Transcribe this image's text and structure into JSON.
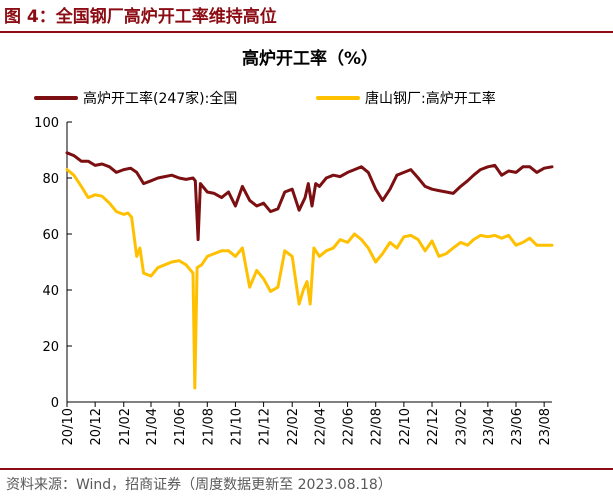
{
  "figure": {
    "title": "图 4：全国钢厂高炉开工率维持高位",
    "source": "资料来源：Wind，招商证券（周度数据更新至 2023.08.18）"
  },
  "chart_data": {
    "type": "line",
    "title": "高炉开工率（%）",
    "xlabel": "",
    "ylabel": "",
    "ylim": [
      0,
      100
    ],
    "yticks": [
      0,
      20,
      40,
      60,
      80,
      100
    ],
    "legend_position": "top",
    "grid": false,
    "xtick_labels": [
      "20/10",
      "20/12",
      "21/02",
      "21/04",
      "21/06",
      "21/08",
      "21/10",
      "21/12",
      "22/02",
      "22/04",
      "22/06",
      "22/08",
      "22/10",
      "22/12",
      "23/02",
      "23/04",
      "23/06",
      "23/08"
    ],
    "series": [
      {
        "name": "高炉开工率(247家):全国",
        "color": "#7b0f11",
        "points": [
          [
            "2020-10-01",
            89
          ],
          [
            "2020-10-16",
            88
          ],
          [
            "2020-11-01",
            86
          ],
          [
            "2020-11-16",
            86
          ],
          [
            "2020-12-01",
            84.5
          ],
          [
            "2020-12-16",
            85
          ],
          [
            "2021-01-01",
            84
          ],
          [
            "2021-01-16",
            82
          ],
          [
            "2021-02-01",
            83
          ],
          [
            "2021-02-16",
            83.5
          ],
          [
            "2021-03-01",
            82
          ],
          [
            "2021-03-16",
            78
          ],
          [
            "2021-04-01",
            79
          ],
          [
            "2021-04-16",
            80
          ],
          [
            "2021-05-01",
            80.5
          ],
          [
            "2021-05-16",
            81
          ],
          [
            "2021-06-01",
            80
          ],
          [
            "2021-06-16",
            79.5
          ],
          [
            "2021-07-01",
            80
          ],
          [
            "2021-07-06",
            79
          ],
          [
            "2021-07-12",
            58
          ],
          [
            "2021-07-17",
            78
          ],
          [
            "2021-08-01",
            75
          ],
          [
            "2021-08-16",
            74.5
          ],
          [
            "2021-09-01",
            73
          ],
          [
            "2021-09-16",
            75
          ],
          [
            "2021-10-01",
            70
          ],
          [
            "2021-10-16",
            77
          ],
          [
            "2021-11-01",
            72
          ],
          [
            "2021-11-16",
            70
          ],
          [
            "2021-12-01",
            71
          ],
          [
            "2021-12-16",
            68
          ],
          [
            "2022-01-01",
            69
          ],
          [
            "2022-01-16",
            75
          ],
          [
            "2022-02-01",
            76
          ],
          [
            "2022-02-16",
            68.5
          ],
          [
            "2022-03-01",
            73
          ],
          [
            "2022-03-08",
            78
          ],
          [
            "2022-03-16",
            70
          ],
          [
            "2022-03-24",
            78
          ],
          [
            "2022-04-01",
            77
          ],
          [
            "2022-04-16",
            80
          ],
          [
            "2022-05-01",
            81
          ],
          [
            "2022-05-16",
            80.5
          ],
          [
            "2022-06-01",
            82
          ],
          [
            "2022-06-16",
            83
          ],
          [
            "2022-07-01",
            84
          ],
          [
            "2022-07-16",
            82
          ],
          [
            "2022-08-01",
            76
          ],
          [
            "2022-08-16",
            72
          ],
          [
            "2022-09-01",
            76
          ],
          [
            "2022-09-16",
            81
          ],
          [
            "2022-10-01",
            82
          ],
          [
            "2022-10-16",
            83
          ],
          [
            "2022-11-01",
            80
          ],
          [
            "2022-11-16",
            77
          ],
          [
            "2022-12-01",
            76
          ],
          [
            "2022-12-16",
            75.5
          ],
          [
            "2023-01-01",
            75
          ],
          [
            "2023-01-16",
            74.5
          ],
          [
            "2023-02-01",
            77
          ],
          [
            "2023-02-16",
            79
          ],
          [
            "2023-03-01",
            81
          ],
          [
            "2023-03-16",
            83
          ],
          [
            "2023-04-01",
            84
          ],
          [
            "2023-04-16",
            84.5
          ],
          [
            "2023-05-01",
            81
          ],
          [
            "2023-05-16",
            82.5
          ],
          [
            "2023-06-01",
            82
          ],
          [
            "2023-06-16",
            84
          ],
          [
            "2023-07-01",
            84
          ],
          [
            "2023-07-16",
            82
          ],
          [
            "2023-08-01",
            83.5
          ],
          [
            "2023-08-18",
            84
          ]
        ]
      },
      {
        "name": "唐山钢厂:高炉开工率",
        "color": "#ffc000",
        "points": [
          [
            "2020-10-01",
            83
          ],
          [
            "2020-10-16",
            81
          ],
          [
            "2020-11-01",
            77
          ],
          [
            "2020-11-16",
            73
          ],
          [
            "2020-12-01",
            74
          ],
          [
            "2020-12-16",
            73.5
          ],
          [
            "2021-01-01",
            71
          ],
          [
            "2021-01-16",
            68
          ],
          [
            "2021-02-01",
            67
          ],
          [
            "2021-02-10",
            67.5
          ],
          [
            "2021-02-18",
            66
          ],
          [
            "2021-03-01",
            52
          ],
          [
            "2021-03-08",
            55
          ],
          [
            "2021-03-16",
            46
          ],
          [
            "2021-04-01",
            45
          ],
          [
            "2021-04-16",
            48
          ],
          [
            "2021-05-01",
            49
          ],
          [
            "2021-05-16",
            50
          ],
          [
            "2021-06-01",
            50.5
          ],
          [
            "2021-06-16",
            49
          ],
          [
            "2021-07-01",
            46
          ],
          [
            "2021-07-05",
            5
          ],
          [
            "2021-07-10",
            48
          ],
          [
            "2021-07-20",
            49
          ],
          [
            "2021-08-01",
            52
          ],
          [
            "2021-08-16",
            53
          ],
          [
            "2021-09-01",
            54
          ],
          [
            "2021-09-16",
            54
          ],
          [
            "2021-10-01",
            52
          ],
          [
            "2021-10-16",
            55
          ],
          [
            "2021-11-01",
            41
          ],
          [
            "2021-11-16",
            47
          ],
          [
            "2021-12-01",
            44
          ],
          [
            "2021-12-16",
            39.5
          ],
          [
            "2022-01-01",
            41
          ],
          [
            "2022-01-16",
            54
          ],
          [
            "2022-02-01",
            52
          ],
          [
            "2022-02-16",
            35
          ],
          [
            "2022-02-25",
            40
          ],
          [
            "2022-03-05",
            43
          ],
          [
            "2022-03-12",
            35
          ],
          [
            "2022-03-20",
            55
          ],
          [
            "2022-04-01",
            52
          ],
          [
            "2022-04-16",
            54
          ],
          [
            "2022-05-01",
            55
          ],
          [
            "2022-05-16",
            58
          ],
          [
            "2022-06-01",
            57
          ],
          [
            "2022-06-16",
            60
          ],
          [
            "2022-07-01",
            58
          ],
          [
            "2022-07-16",
            55
          ],
          [
            "2022-08-01",
            50
          ],
          [
            "2022-08-16",
            53
          ],
          [
            "2022-09-01",
            57
          ],
          [
            "2022-09-16",
            55
          ],
          [
            "2022-10-01",
            59
          ],
          [
            "2022-10-16",
            59.5
          ],
          [
            "2022-11-01",
            58
          ],
          [
            "2022-11-16",
            54
          ],
          [
            "2022-12-01",
            57.5
          ],
          [
            "2022-12-16",
            52
          ],
          [
            "2023-01-01",
            53
          ],
          [
            "2023-01-16",
            55
          ],
          [
            "2023-02-01",
            57
          ],
          [
            "2023-02-16",
            56
          ],
          [
            "2023-03-01",
            58
          ],
          [
            "2023-03-16",
            59.5
          ],
          [
            "2023-04-01",
            59
          ],
          [
            "2023-04-16",
            59.5
          ],
          [
            "2023-05-01",
            58.5
          ],
          [
            "2023-05-16",
            59.5
          ],
          [
            "2023-06-01",
            56
          ],
          [
            "2023-06-16",
            57
          ],
          [
            "2023-07-01",
            58.5
          ],
          [
            "2023-07-16",
            56
          ],
          [
            "2023-08-01",
            56
          ],
          [
            "2023-08-18",
            56
          ]
        ]
      }
    ]
  }
}
